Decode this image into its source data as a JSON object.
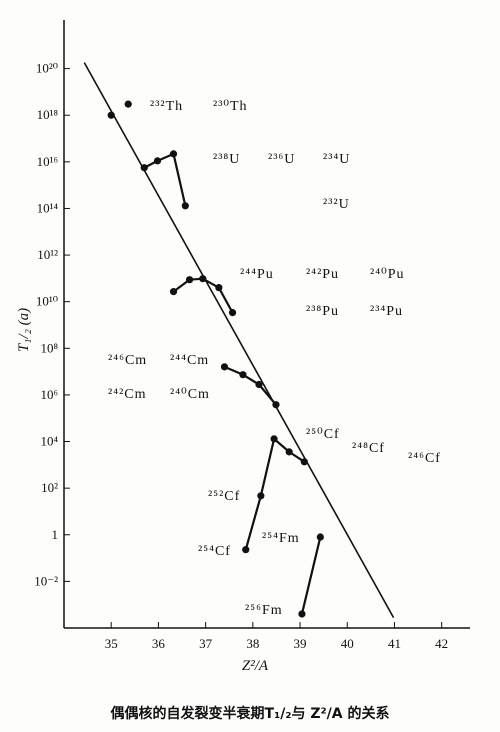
{
  "chart_data": {
    "type": "line",
    "caption": "偶偶核的自发裂变半衰期T₁/₂与 Z²/A 的关系",
    "x_label": "Z²/A",
    "y_label": "T₁/₂ (a)",
    "log_y": true,
    "color": "#111111",
    "xlim": [
      34,
      42.6
    ],
    "xticks": [
      35,
      36,
      37,
      38,
      39,
      40,
      41,
      42
    ],
    "ylim": [
      0.0001,
      1e+22
    ],
    "yticks": [
      {
        "value": 0.01,
        "label": "10⁻²"
      },
      1,
      {
        "value": 100.0,
        "label": "10²"
      },
      {
        "value": 10000.0,
        "label": "10⁴"
      },
      {
        "value": 1000000.0,
        "label": "10⁶"
      },
      {
        "value": 100000000.0,
        "label": "10⁸"
      },
      {
        "value": 10000000000.0,
        "label": "10¹⁰"
      },
      {
        "value": 1000000000000.0,
        "label": "10¹²"
      },
      {
        "value": 100000000000000.0,
        "label": "10¹⁴"
      },
      {
        "value": 1e+16,
        "label": "10¹⁶"
      },
      {
        "value": 1e+18,
        "label": "10¹⁸"
      },
      {
        "value": 1e+20,
        "label": "10²⁰"
      }
    ],
    "series": [
      {
        "x": [
          34.43,
          40.98
        ],
        "values": [
          1.8e+20,
          0.00028
        ],
        "markers": false,
        "connect": true
      },
      {
        "x": [
          35.0,
          35.36
        ],
        "values": [
          1e+18,
          3e+18
        ],
        "markers": true,
        "connect": false
      },
      {
        "x": [
          35.7,
          35.98,
          36.32,
          36.57
        ],
        "values": [
          5600000000000000.0,
          1.1e+16,
          2.2e+16,
          130000000000000.0
        ],
        "markers": true,
        "connect": true
      },
      {
        "x": [
          36.32,
          36.66,
          36.94,
          37.28,
          37.57
        ],
        "values": [
          27000000000.0,
          88000000000.0,
          97000000000.0,
          40000000000.0,
          3400000000.0
        ],
        "markers": true,
        "connect": true
      },
      {
        "x": [
          37.4,
          37.79,
          38.13,
          38.49
        ],
        "values": [
          16000000.0,
          7400000.0,
          2800000.0,
          380000.0
        ],
        "markers": true,
        "connect": true
      },
      {
        "x": [
          37.85,
          38.17,
          38.45,
          38.77,
          39.09
        ],
        "values": [
          0.23,
          47,
          13000.0,
          3600.0,
          1350.0
        ],
        "markers": true,
        "connect": true
      },
      {
        "x": [
          39.04,
          39.43
        ],
        "values": [
          0.0004,
          0.8
        ],
        "markers": true,
        "connect": true
      }
    ],
    "annotations": [
      "²³²Th",
      "²³⁰Th",
      "²³⁸U",
      "²³⁶U",
      "²³⁴U",
      "²³²U",
      "²⁴⁴Pu",
      "²⁴²Pu",
      "²⁴⁰Pu",
      "²³⁸Pu",
      "²³⁴Pu",
      "²⁴⁶Cm",
      "²⁴⁴Cm",
      "²⁴²Cm",
      "²⁴⁰Cm",
      "²⁵⁰Cf",
      "²⁴⁸Cf",
      "²⁴⁶Cf",
      "²⁵²Cf",
      "²⁵⁴Fm",
      "²⁵⁴Cf",
      "²⁵⁶Fm"
    ]
  }
}
